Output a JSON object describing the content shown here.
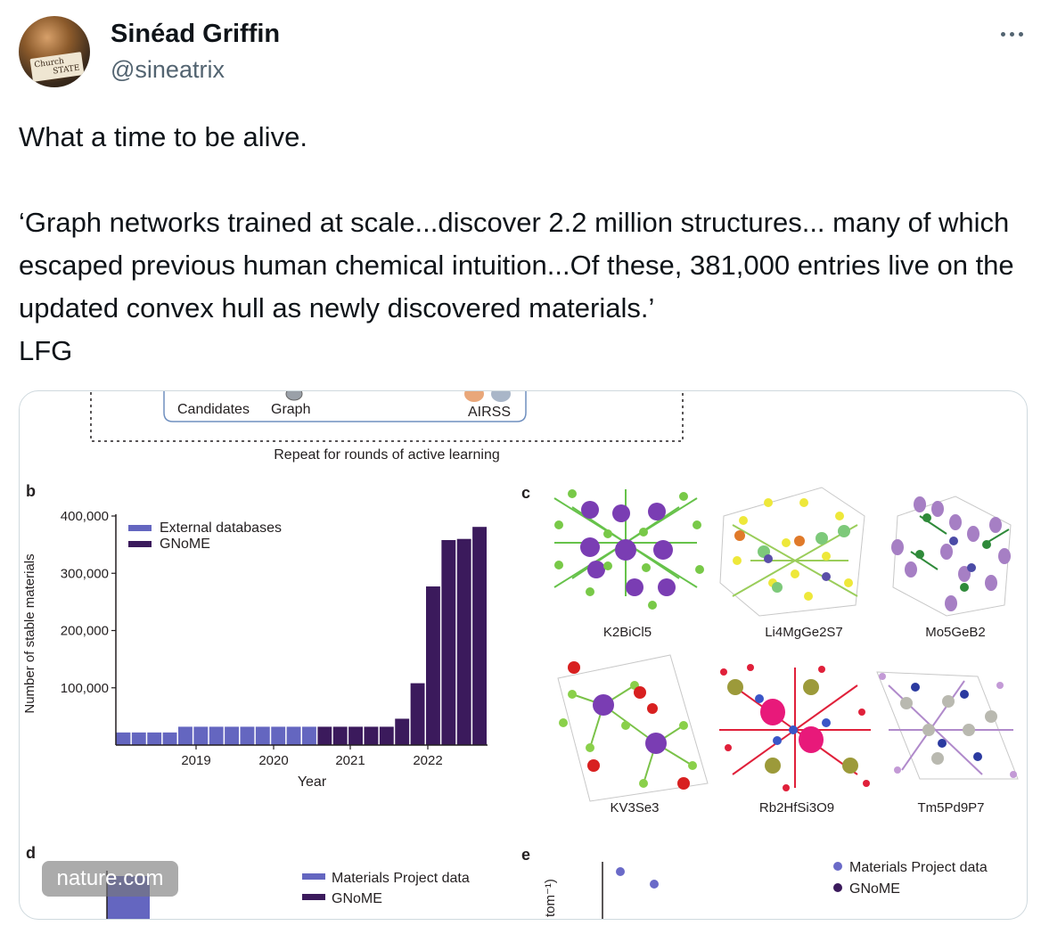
{
  "author": {
    "name": "Sinéad Griffin",
    "handle": "@sineatrix",
    "avatar_sign": [
      "Church",
      "STATE"
    ]
  },
  "tweet": {
    "text": "What a time to be alive.\n\n‘Graph networks trained at scale...discover 2.2 million structures... many of which escaped previous human chemical intuition...Of these, 381,000 entries live on the updated convex hull as newly discovered materials.’\nLFG"
  },
  "figure": {
    "panel_a": {
      "labels": [
        "Candidates",
        "Graph",
        "AIRSS"
      ],
      "repeat_label": "Repeat for rounds of active learning"
    },
    "panel_b_letter": "b",
    "panel_c_letter": "c",
    "panel_d_letter": "d",
    "panel_e_letter": "e",
    "panel_c": {
      "materials": [
        "K2BiCl5",
        "Li4MgGe2S7",
        "Mo5GeB2",
        "KV3Se3",
        "Rb2HfSi3O9",
        "Tm5Pd9P7"
      ]
    },
    "panel_d": {
      "legend": [
        "Materials Project data",
        "GNoME"
      ]
    },
    "panel_e": {
      "legend": [
        "Materials Project data",
        "GNoME"
      ],
      "ylabel_fragment": "tom⁻¹)"
    }
  },
  "watermark": "nature.com",
  "colors": {
    "external": "#6466c0",
    "gnome": "#3b1a5c",
    "text_secondary": "#536471"
  },
  "chart_data": {
    "type": "bar",
    "title": "",
    "xlabel": "Year",
    "ylabel": "Number of stable materials",
    "ylim": [
      0,
      400000
    ],
    "yticks": [
      100000,
      200000,
      300000,
      400000
    ],
    "ytick_labels": [
      "100,000",
      "200,000",
      "300,000",
      "400,000"
    ],
    "xtick_labels": [
      "2019",
      "2020",
      "2021",
      "2022"
    ],
    "legend": [
      "External databases",
      "GNoME"
    ],
    "legend_position": "top-left",
    "series": [
      {
        "name": "External databases",
        "values": [
          22000,
          22000,
          22000,
          22000,
          32000,
          32000,
          32000,
          32000,
          32000,
          32000,
          32000,
          32000,
          32000,
          0,
          0,
          0,
          0,
          0,
          0,
          0,
          0,
          0,
          0,
          0
        ]
      },
      {
        "name": "GNoME",
        "values": [
          0,
          0,
          0,
          0,
          0,
          0,
          0,
          0,
          0,
          0,
          0,
          0,
          0,
          32000,
          32000,
          32000,
          32000,
          32000,
          46000,
          108000,
          277000,
          358000,
          360000,
          381000
        ]
      }
    ]
  }
}
